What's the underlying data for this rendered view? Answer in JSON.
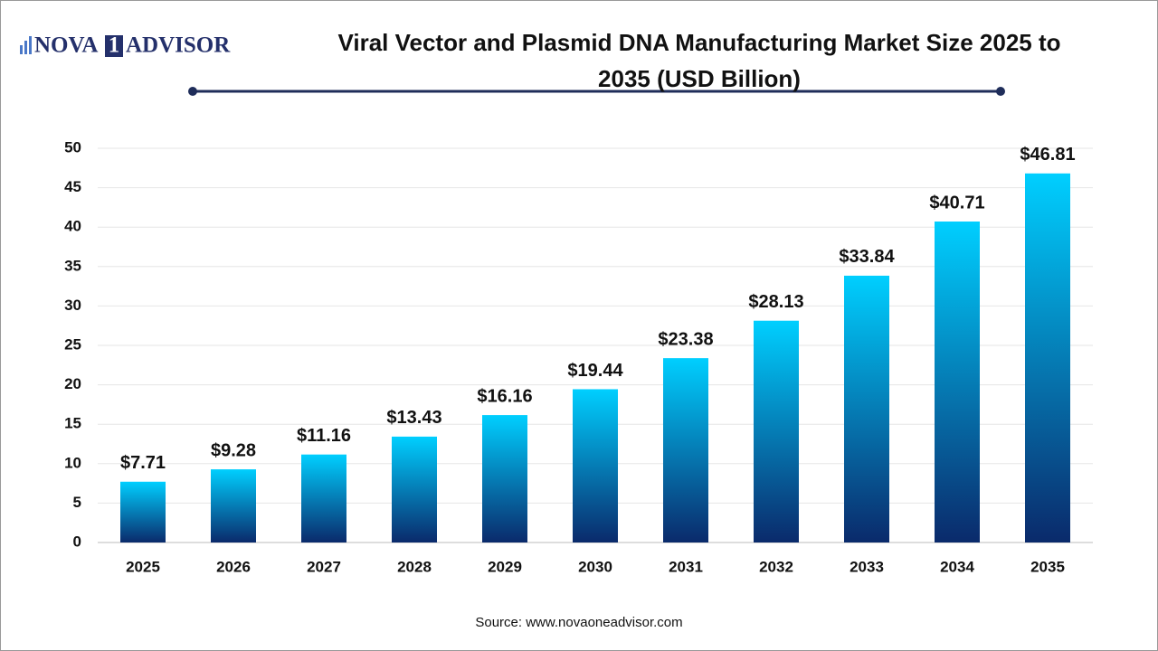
{
  "brand": {
    "left": "NOVA",
    "mark": "1",
    "right": "ADVISOR"
  },
  "chart_data": {
    "type": "bar",
    "title": "Viral Vector and Plasmid DNA Manufacturing Market Size 2025 to 2035 (USD Billion)",
    "categories": [
      "2025",
      "2026",
      "2027",
      "2028",
      "2029",
      "2030",
      "2031",
      "2032",
      "2033",
      "2034",
      "2035"
    ],
    "values": [
      7.71,
      9.28,
      11.16,
      13.43,
      16.16,
      19.44,
      23.38,
      28.13,
      33.84,
      40.71,
      46.81
    ],
    "value_labels": [
      "$7.71",
      "$9.28",
      "$11.16",
      "$13.43",
      "$16.16",
      "$19.44",
      "$23.38",
      "$28.13",
      "$33.84",
      "$40.71",
      "$46.81"
    ],
    "colors": [
      "#00cfff",
      "#0a2a6b"
    ],
    "ylim": [
      0,
      50
    ],
    "yticks": [
      0,
      5,
      10,
      15,
      20,
      25,
      30,
      35,
      40,
      45,
      50
    ],
    "grid": true,
    "source": "Source: www.novaoneadvisor.com"
  }
}
